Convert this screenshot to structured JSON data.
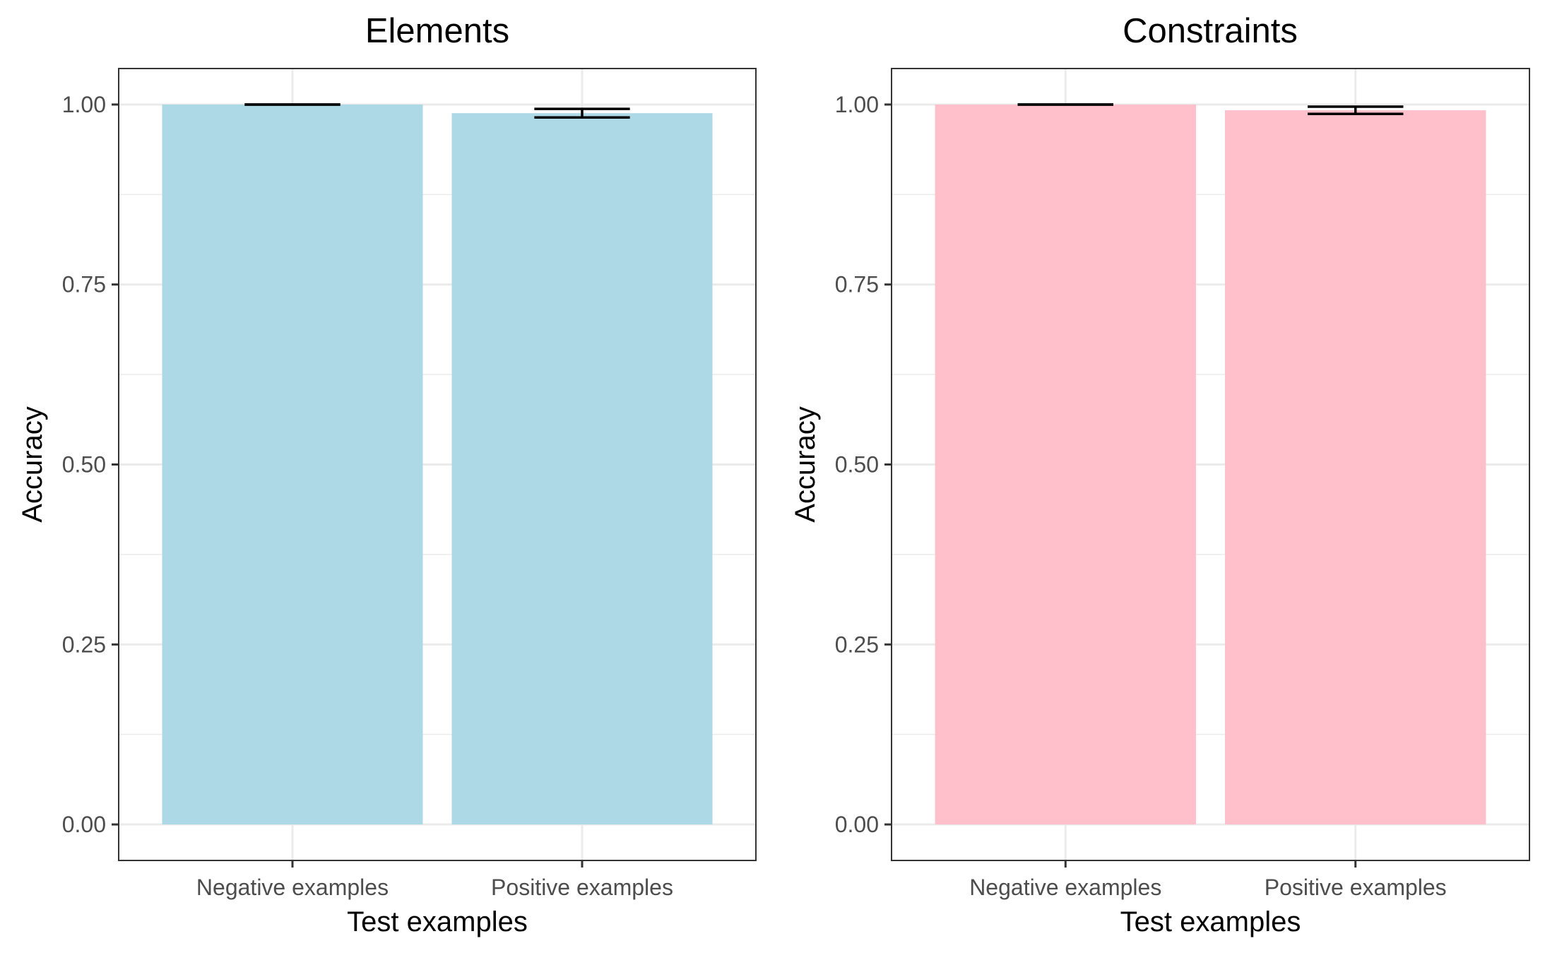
{
  "chart_data": [
    {
      "type": "bar",
      "title": "Elements",
      "xlabel": "Test examples",
      "ylabel": "Accuracy",
      "categories": [
        "Negative examples",
        "Positive examples"
      ],
      "values": [
        1.0,
        0.988
      ],
      "error_low": [
        1.0,
        0.982
      ],
      "error_high": [
        1.0,
        0.994
      ],
      "ylim": [
        -0.05,
        1.05
      ],
      "yticks": [
        0,
        0.25,
        0.5,
        0.75,
        1
      ],
      "ytick_labels": [
        "0.00",
        "0.25",
        "0.50",
        "0.75",
        "1.00"
      ],
      "bar_color": "#add8e6",
      "grid": true,
      "legend": "none"
    },
    {
      "type": "bar",
      "title": "Constraints",
      "xlabel": "Test examples",
      "ylabel": "Accuracy",
      "categories": [
        "Negative examples",
        "Positive examples"
      ],
      "values": [
        1.0,
        0.992
      ],
      "error_low": [
        1.0,
        0.987
      ],
      "error_high": [
        1.0,
        0.997
      ],
      "ylim": [
        -0.05,
        1.05
      ],
      "yticks": [
        0,
        0.25,
        0.5,
        0.75,
        1
      ],
      "ytick_labels": [
        "0.00",
        "0.25",
        "0.50",
        "0.75",
        "1.00"
      ],
      "bar_color": "#ffc0cb",
      "grid": true,
      "legend": "none"
    }
  ]
}
